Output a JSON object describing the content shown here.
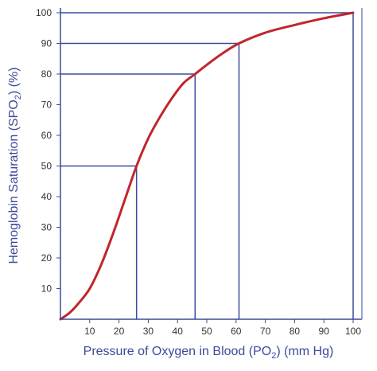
{
  "chart_data": {
    "type": "line",
    "title": "",
    "xlabel": {
      "main": "Pressure of Oxygen in Blood (PO",
      "sub": "2",
      "suffix": ") (mm Hg)"
    },
    "ylabel": {
      "main": "Hemoglobin Saturation (SPO",
      "sub": "2",
      "suffix": ") (%)"
    },
    "xlim": [
      0,
      100
    ],
    "ylim": [
      0,
      100
    ],
    "x_ticks": [
      10,
      20,
      30,
      40,
      50,
      60,
      70,
      80,
      90,
      100
    ],
    "y_ticks": [
      10,
      20,
      30,
      40,
      50,
      60,
      70,
      80,
      90,
      100
    ],
    "grid": false,
    "series": [
      {
        "color": "#c0262c",
        "points": [
          [
            0,
            0
          ],
          [
            3,
            2
          ],
          [
            6,
            5
          ],
          [
            10,
            10
          ],
          [
            14,
            18
          ],
          [
            18,
            28
          ],
          [
            22,
            39
          ],
          [
            26,
            50
          ],
          [
            30,
            59
          ],
          [
            34,
            66
          ],
          [
            38,
            72
          ],
          [
            42,
            77
          ],
          [
            46,
            80
          ],
          [
            50,
            83
          ],
          [
            55,
            86.5
          ],
          [
            61,
            90
          ],
          [
            70,
            93.5
          ],
          [
            80,
            96
          ],
          [
            90,
            98.2
          ],
          [
            100,
            100
          ]
        ]
      }
    ],
    "reference_lines": [
      {
        "x": 26,
        "y": 50
      },
      {
        "x": 46,
        "y": 80
      },
      {
        "x": 61,
        "y": 90
      },
      {
        "x": 100,
        "y": 100
      }
    ],
    "colors": {
      "axis": "#3b4a9c",
      "reference": "#3b4a9c",
      "curve": "#c0262c"
    }
  }
}
